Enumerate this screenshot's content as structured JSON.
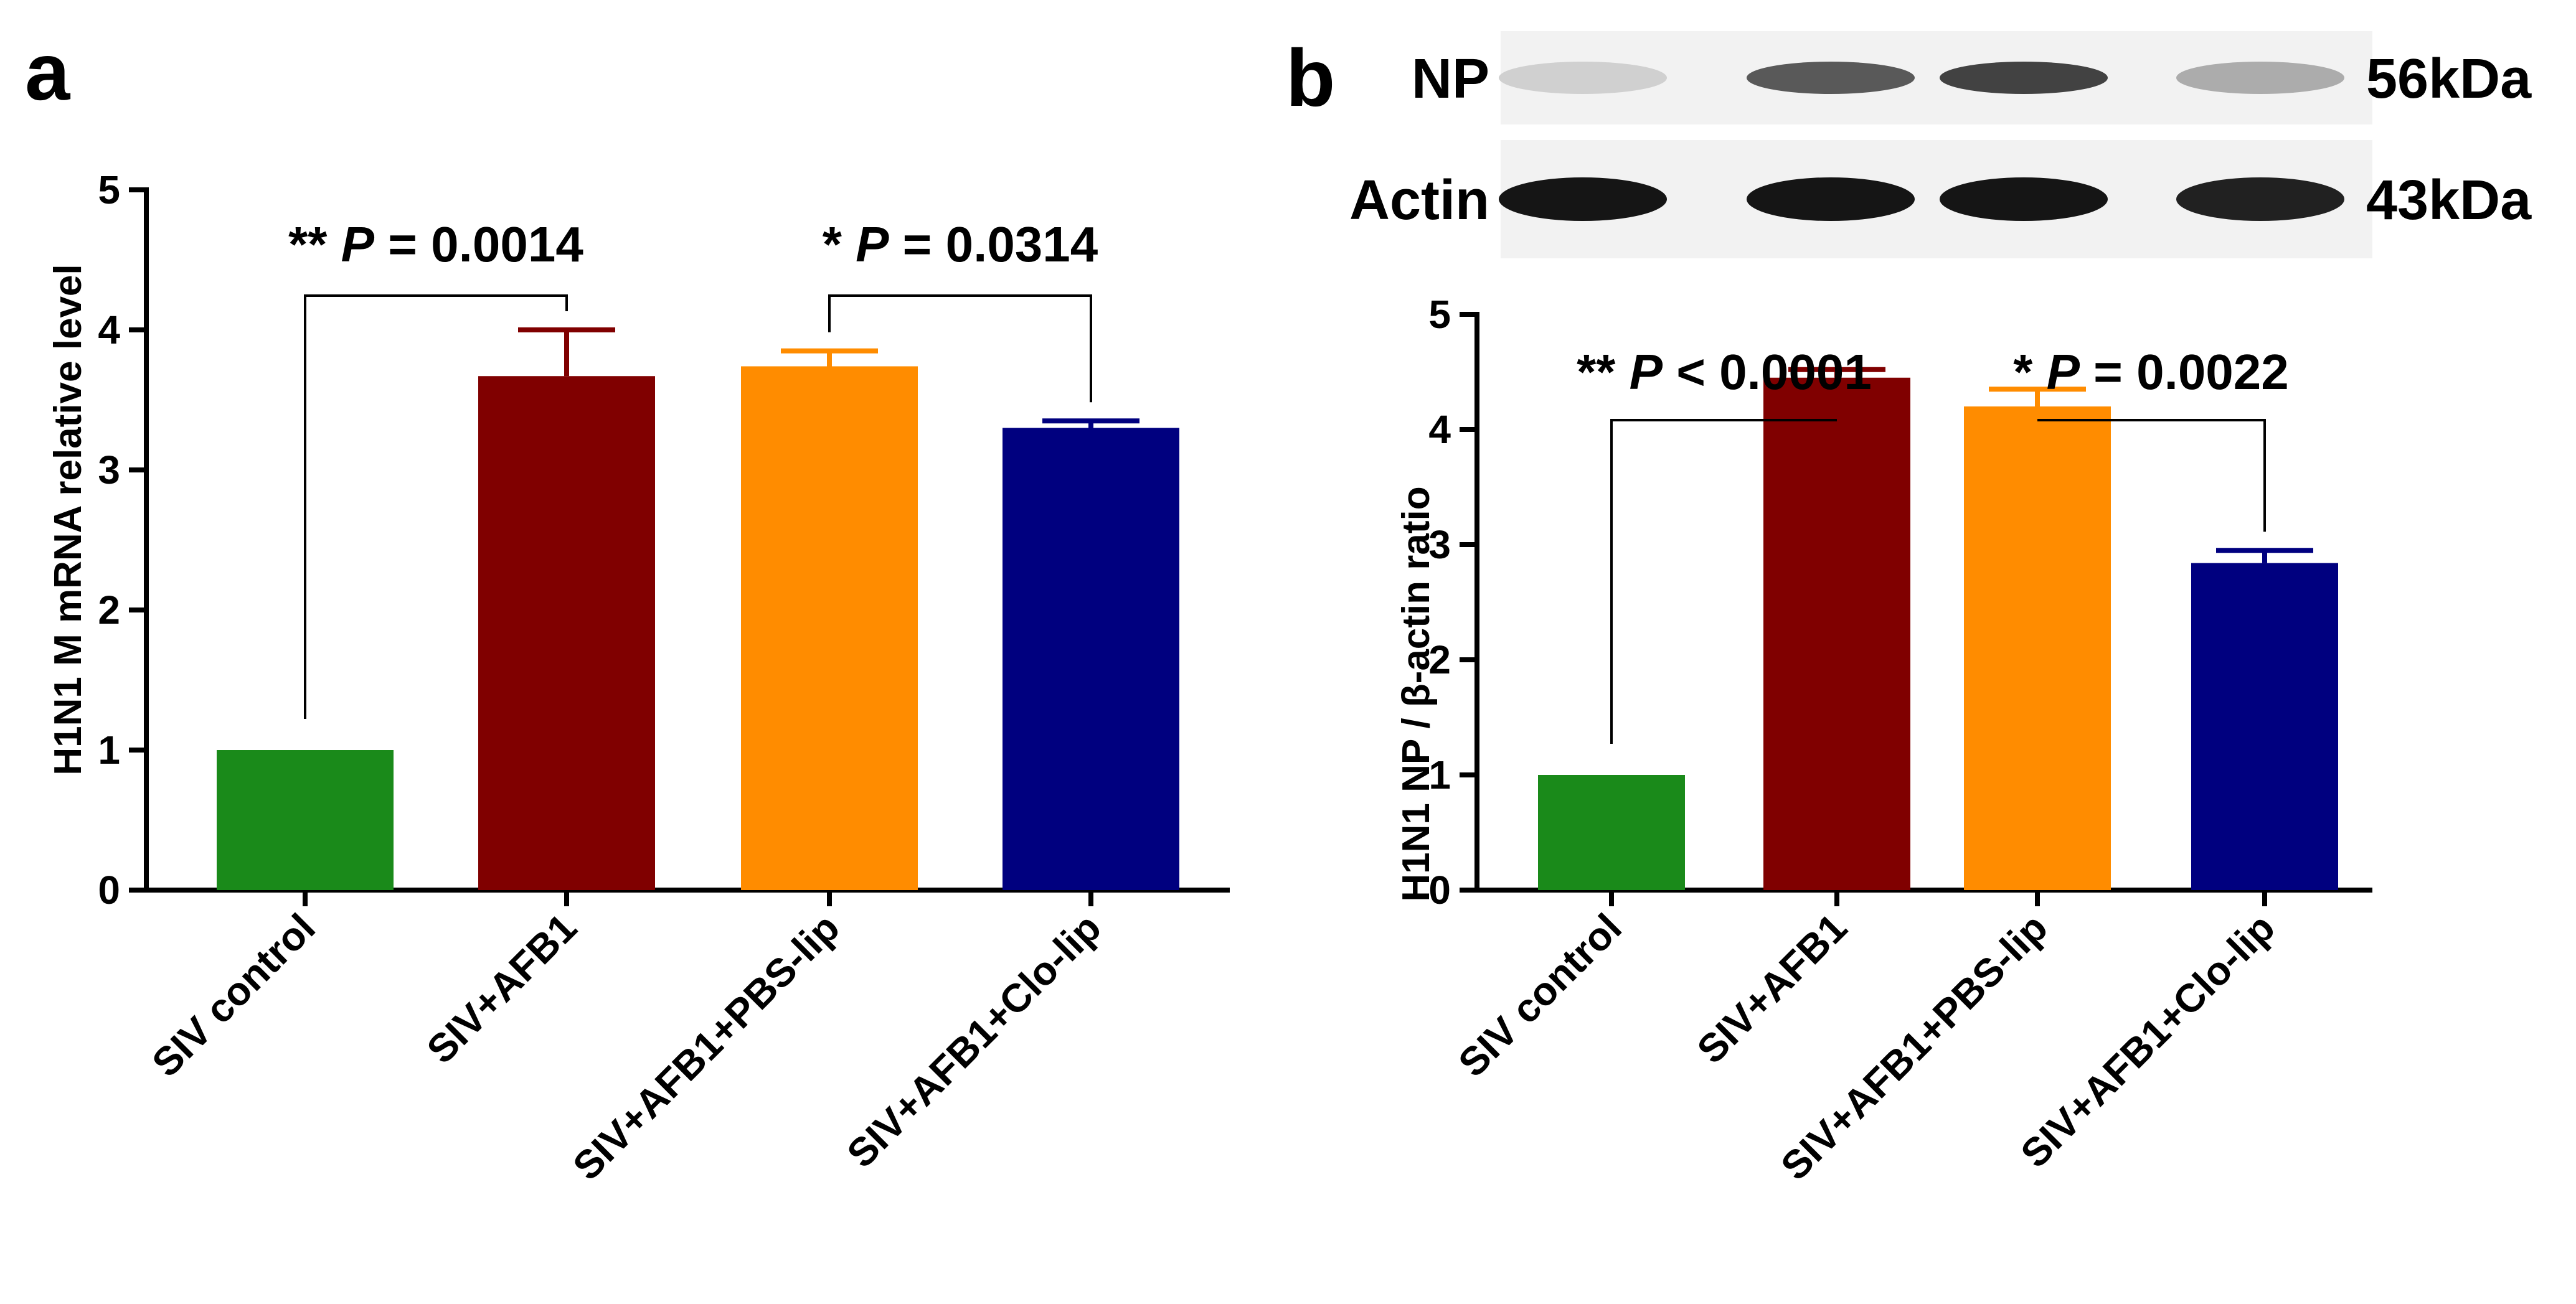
{
  "figure": {
    "panels": [
      {
        "letter": "a",
        "ylabel": "H1N1 M mRNA relative level",
        "comparisons": [
          {
            "stars": "**",
            "p_label": "P",
            "p_value": "= 0.0014",
            "from": 0,
            "to": 1
          },
          {
            "stars": "*",
            "p_label": "P",
            "p_value": "= 0.0314",
            "from": 2,
            "to": 3
          }
        ]
      },
      {
        "letter": "b",
        "ylabel": "H1N1 NP / β-actin ratio",
        "blot": [
          {
            "name": "NP",
            "size": "56kDa",
            "intensity": [
              0.12,
              0.65,
              0.75,
              0.28
            ]
          },
          {
            "name": "Actin",
            "size": "43kDa",
            "intensity": [
              0.95,
              0.95,
              0.95,
              0.9
            ]
          }
        ],
        "comparisons": [
          {
            "stars": "**",
            "p_label": "P",
            "p_value": "< 0.0001",
            "from": 0,
            "to": 1
          },
          {
            "stars": "*",
            "p_label": "P",
            "p_value": "= 0.0022",
            "from": 2,
            "to": 3
          }
        ]
      }
    ]
  },
  "chart_data": [
    {
      "type": "bar",
      "categories": [
        "SIV control",
        "SIV+AFB1",
        "SIV+AFB1+PBS-lip",
        "SIV+AFB1+Clo-lip"
      ],
      "values": [
        1.0,
        3.67,
        3.74,
        3.3
      ],
      "errors": [
        0.0,
        0.33,
        0.11,
        0.05
      ],
      "colors": [
        "#1a8a1a",
        "#800000",
        "#ff8c00",
        "#00007f"
      ],
      "ylabel": "H1N1 M mRNA relative level",
      "ylim": [
        0,
        5
      ],
      "yticks": [
        "0",
        "1",
        "2",
        "3",
        "4",
        "5"
      ]
    },
    {
      "type": "bar",
      "categories": [
        "SIV control",
        "SIV+AFB1",
        "SIV+AFB1+PBS-lip",
        "SIV+AFB1+Clo-lip"
      ],
      "values": [
        1.0,
        4.45,
        4.2,
        2.84
      ],
      "errors": [
        0.0,
        0.07,
        0.15,
        0.11
      ],
      "colors": [
        "#1a8a1a",
        "#800000",
        "#ff8c00",
        "#00007f"
      ],
      "ylabel": "H1N1 NP / β-actin ratio",
      "ylim": [
        0,
        5
      ],
      "yticks": [
        "0",
        "1",
        "2",
        "3",
        "4",
        "5"
      ]
    }
  ]
}
